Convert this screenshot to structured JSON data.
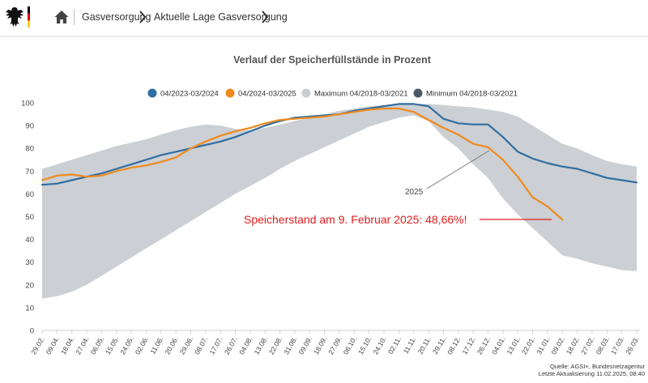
{
  "header": {
    "breadcrumbs": [
      {
        "label": "Gasversorgung"
      },
      {
        "label": "Aktuelle Lage Gasversorgung"
      }
    ]
  },
  "colors": {
    "series_2023": "#2f6ea3",
    "series_2024": "#f08a1c",
    "band": "#c9ccd1",
    "minimum": "#4a5a66",
    "annotation": "#e11d1d"
  },
  "chart_data": {
    "type": "line",
    "title": "Verlauf der Speicherfüllstände in Prozent",
    "x_ticks": [
      "29.02.",
      "09.04.",
      "18.04.",
      "27.04.",
      "06.05.",
      "15.05.",
      "24.05.",
      "02.06.",
      "11.06.",
      "20.06.",
      "29.06.",
      "08.07.",
      "17.07.",
      "26.07.",
      "04.08.",
      "13.08.",
      "22.08.",
      "31.08.",
      "09.09.",
      "18.09.",
      "27.09.",
      "06.10.",
      "15.10.",
      "24.10.",
      "02.11.",
      "11.11.",
      "20.11.",
      "29.11.",
      "08.12.",
      "17.12.",
      "26.12.",
      "04.01.",
      "13.01.",
      "22.01.",
      "31.01.",
      "09.02.",
      "18.02.",
      "27.02.",
      "08.03.",
      "17.03.",
      "26.03."
    ],
    "y_ticks": [
      0,
      10,
      20,
      30,
      40,
      50,
      60,
      70,
      80,
      90,
      100
    ],
    "ylim": [
      0,
      100
    ],
    "legend_position": "top-center",
    "grid": false,
    "legend": [
      {
        "label": "04/2023-03/2024",
        "color": "#2f6ea3"
      },
      {
        "label": "04/2024-03/2025",
        "color": "#f08a1c"
      },
      {
        "label": "Maximum 04/2018-03/2021",
        "color": "#c9ccd1"
      },
      {
        "label": "Minimum 04/2018-03/2021",
        "color": "#4a5a66"
      }
    ],
    "series": [
      {
        "name": "04/2023-03/2024",
        "x": [
          0,
          1,
          2,
          3,
          4,
          5,
          6,
          7,
          8,
          9,
          10,
          11,
          12,
          13,
          14,
          15,
          16,
          17,
          18,
          19,
          20,
          21,
          22,
          23,
          24,
          25,
          26,
          27,
          28,
          29,
          30,
          31,
          32,
          33,
          34,
          35,
          36,
          37,
          38,
          39,
          40
        ],
        "values": [
          64,
          64.5,
          66,
          67.5,
          69,
          71,
          73,
          75,
          77,
          78.5,
          80,
          81.5,
          83,
          85,
          87.5,
          90,
          92,
          93.5,
          94,
          94.5,
          95,
          96.5,
          97.5,
          98.5,
          99.5,
          99.5,
          98.5,
          93,
          91,
          90.5,
          90.5,
          85,
          78.5,
          75.5,
          73.5,
          72,
          71,
          69,
          67,
          66,
          65
        ]
      },
      {
        "name": "04/2024-03/2025",
        "x": [
          0,
          1,
          2,
          3,
          4,
          5,
          6,
          7,
          8,
          9,
          10,
          11,
          12,
          13,
          14,
          15,
          16,
          17,
          18,
          19,
          20,
          21,
          22,
          23,
          24,
          25,
          26,
          27,
          28,
          29,
          30,
          31,
          32,
          33,
          34,
          35
        ],
        "values": [
          66,
          68,
          68.5,
          67.5,
          68,
          70,
          71.5,
          72.5,
          74,
          76,
          80,
          83,
          85.5,
          87.5,
          89,
          91,
          92.5,
          93,
          93.5,
          94,
          95,
          96,
          97,
          97.5,
          97.5,
          96,
          92.5,
          89,
          86,
          82,
          80.5,
          75,
          67.5,
          58.5,
          54.5,
          48.66
        ]
      }
    ],
    "band": {
      "name": "Maximum 04/2018-03/2021",
      "x": [
        0,
        1,
        2,
        3,
        4,
        5,
        6,
        7,
        8,
        9,
        10,
        11,
        12,
        13,
        14,
        15,
        16,
        17,
        18,
        19,
        20,
        21,
        22,
        23,
        24,
        25,
        26,
        27,
        28,
        29,
        30,
        31,
        32,
        33,
        34,
        35,
        36,
        37,
        38,
        39,
        40
      ],
      "upper": [
        71,
        73,
        75,
        77,
        79,
        81,
        82.5,
        84,
        86,
        88,
        89.5,
        90.5,
        90,
        88.5,
        88,
        89,
        90.5,
        92,
        93.5,
        95,
        96.5,
        97.5,
        98.5,
        99,
        99.5,
        99.5,
        99.5,
        99,
        98.5,
        98,
        97,
        96,
        94,
        90,
        86,
        82,
        80,
        77,
        74.5,
        73,
        72
      ],
      "lower": [
        14,
        15,
        17,
        20,
        24,
        28,
        32,
        36,
        40,
        44,
        48,
        52,
        56,
        60,
        63.5,
        67,
        71,
        74.5,
        77.5,
        80.5,
        83.5,
        86.5,
        89.5,
        91.5,
        93.5,
        94.5,
        92,
        85,
        80,
        73,
        67,
        58,
        51,
        45,
        39,
        33,
        31.5,
        29.5,
        28,
        26.5,
        26
      ]
    },
    "annotations": [
      {
        "text": "2025"
      },
      {
        "text": "Speicherstand am 9. Februar 2025: 48,66%!"
      }
    ],
    "source": "Quelle: AGSI+, Bundesnetzagentur",
    "updated": "Letzte Aktualisierung 11.02.2025, 08:40"
  }
}
